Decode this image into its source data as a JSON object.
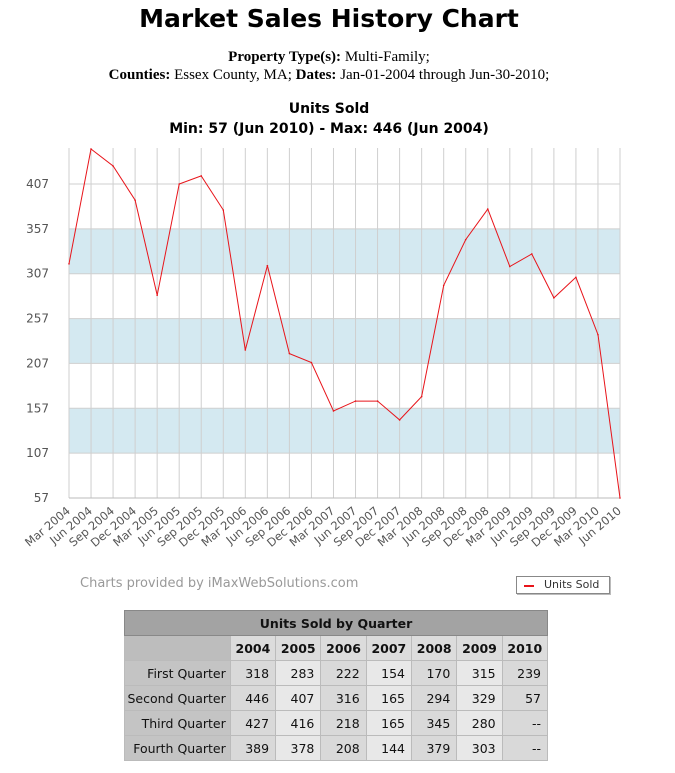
{
  "header": {
    "title": "Market Sales History Chart",
    "line1_label": "Property Type(s):",
    "line1_value": " Multi-Family;",
    "line2_label1": "Counties:",
    "line2_value1": " Essex County, MA; ",
    "line2_label2": "Dates:",
    "line2_value2": " Jan-01-2004 through Jun-30-2010;"
  },
  "chart_data": {
    "type": "line",
    "title": "Units Sold",
    "subtitle": "Min: 57 (Jun 2010) - Max: 446 (Jun 2004)",
    "categories": [
      "Mar 2004",
      "Jun 2004",
      "Sep 2004",
      "Dec 2004",
      "Mar 2005",
      "Jun 2005",
      "Sep 2005",
      "Dec 2005",
      "Mar 2006",
      "Jun 2006",
      "Sep 2006",
      "Dec 2006",
      "Mar 2007",
      "Jun 2007",
      "Sep 2007",
      "Dec 2007",
      "Mar 2008",
      "Jun 2008",
      "Sep 2008",
      "Dec 2008",
      "Mar 2009",
      "Jun 2009",
      "Sep 2009",
      "Dec 2009",
      "Mar 2010",
      "Jun 2010"
    ],
    "series": [
      {
        "name": "Units Sold",
        "color": "#e8141a",
        "values": [
          318,
          446,
          427,
          389,
          283,
          407,
          416,
          378,
          222,
          316,
          218,
          208,
          154,
          165,
          165,
          144,
          170,
          294,
          345,
          379,
          315,
          329,
          280,
          303,
          239,
          57
        ]
      }
    ],
    "yticks": [
      57,
      107,
      157,
      207,
      257,
      307,
      357,
      407
    ],
    "ylim": [
      57,
      446
    ],
    "band_color": "#d4e9f1",
    "grid": true
  },
  "footer": {
    "credit": "Charts provided by iMaxWebSolutions.com",
    "legend_label": "Units Sold"
  },
  "table": {
    "caption": "Units Sold by Quarter",
    "years": [
      "2004",
      "2005",
      "2006",
      "2007",
      "2008",
      "2009",
      "2010"
    ],
    "rows": [
      {
        "label": "First Quarter",
        "values": [
          "318",
          "283",
          "222",
          "154",
          "170",
          "315",
          "239"
        ]
      },
      {
        "label": "Second Quarter",
        "values": [
          "446",
          "407",
          "316",
          "165",
          "294",
          "329",
          "57"
        ]
      },
      {
        "label": "Third Quarter",
        "values": [
          "427",
          "416",
          "218",
          "165",
          "345",
          "280",
          "--"
        ]
      },
      {
        "label": "Fourth Quarter",
        "values": [
          "389",
          "378",
          "208",
          "144",
          "379",
          "303",
          "--"
        ]
      }
    ]
  }
}
